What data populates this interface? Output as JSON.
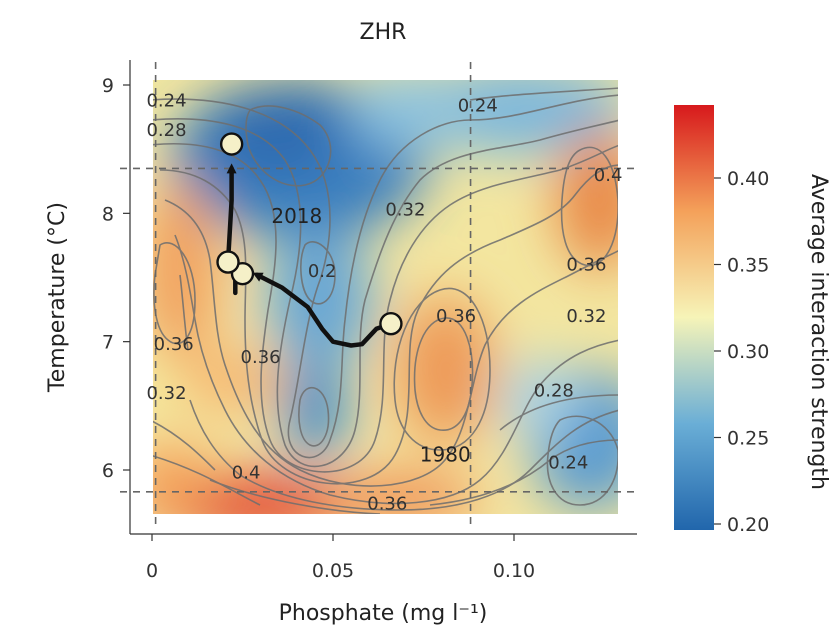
{
  "chart_data": {
    "type": "heatmap",
    "title": "ZHR",
    "xlabel": "Phosphate (mg l⁻¹)",
    "ylabel": "Temperature (°C)",
    "colorbar_label": "Average interaction strength",
    "xlim": [
      0,
      0.128
    ],
    "ylim": [
      5.65,
      9.05
    ],
    "x_ticks": [
      {
        "value": 0,
        "label": "0"
      },
      {
        "value": 0.05,
        "label": "0.05"
      },
      {
        "value": 0.1,
        "label": "0.10"
      }
    ],
    "y_ticks": [
      {
        "value": 6,
        "label": "6"
      },
      {
        "value": 7,
        "label": "7"
      },
      {
        "value": 8,
        "label": "8"
      },
      {
        "value": 9,
        "label": "9"
      }
    ],
    "colorbar_range": [
      0.195,
      0.44
    ],
    "colorbar_ticks": [
      {
        "value": 0.2,
        "label": "0.20"
      },
      {
        "value": 0.25,
        "label": "0.25"
      },
      {
        "value": 0.3,
        "label": "0.30"
      },
      {
        "value": 0.35,
        "label": "0.35"
      },
      {
        "value": 0.4,
        "label": "0.40"
      }
    ],
    "dashed_lines": {
      "x": [
        0.001,
        0.088
      ],
      "y": [
        5.83,
        8.35
      ]
    },
    "contour_labels": [
      {
        "text": "0.24",
        "x": 0.004,
        "y": 8.88
      },
      {
        "text": "0.28",
        "x": 0.004,
        "y": 8.65
      },
      {
        "text": "0.24",
        "x": 0.09,
        "y": 8.84
      },
      {
        "text": "0.32",
        "x": 0.07,
        "y": 8.03
      },
      {
        "text": "0.4",
        "x": 0.126,
        "y": 8.3
      },
      {
        "text": "0.2",
        "x": 0.047,
        "y": 7.55
      },
      {
        "text": "0.36",
        "x": 0.12,
        "y": 7.6
      },
      {
        "text": "0.32",
        "x": 0.12,
        "y": 7.2
      },
      {
        "text": "0.36",
        "x": 0.084,
        "y": 7.2
      },
      {
        "text": "0.36",
        "x": 0.006,
        "y": 6.98
      },
      {
        "text": "0.36",
        "x": 0.03,
        "y": 6.88
      },
      {
        "text": "0.32",
        "x": 0.004,
        "y": 6.6
      },
      {
        "text": "0.28",
        "x": 0.111,
        "y": 6.62
      },
      {
        "text": "0.24",
        "x": 0.115,
        "y": 6.06
      },
      {
        "text": "0.4",
        "x": 0.026,
        "y": 5.98
      },
      {
        "text": "0.36",
        "x": 0.065,
        "y": 5.74
      }
    ],
    "trajectory": {
      "path": [
        {
          "x": 0.066,
          "y": 7.14
        },
        {
          "x": 0.062,
          "y": 7.1
        },
        {
          "x": 0.058,
          "y": 6.98
        },
        {
          "x": 0.055,
          "y": 6.97
        },
        {
          "x": 0.05,
          "y": 7.0
        },
        {
          "x": 0.047,
          "y": 7.1
        },
        {
          "x": 0.043,
          "y": 7.27
        },
        {
          "x": 0.036,
          "y": 7.42
        },
        {
          "x": 0.029,
          "y": 7.52
        }
      ],
      "upper_path": [
        {
          "x": 0.023,
          "y": 7.38
        },
        {
          "x": 0.023,
          "y": 7.62
        },
        {
          "x": 0.021,
          "y": 7.62
        },
        {
          "x": 0.022,
          "y": 8.1
        },
        {
          "x": 0.022,
          "y": 8.35
        }
      ],
      "points": [
        {
          "x": 0.066,
          "y": 7.14
        },
        {
          "x": 0.025,
          "y": 7.53
        },
        {
          "x": 0.021,
          "y": 7.62
        },
        {
          "x": 0.022,
          "y": 8.54
        }
      ],
      "year_labels": [
        {
          "text": "2018",
          "x": 0.04,
          "y": 7.98
        },
        {
          "text": "1980",
          "x": 0.081,
          "y": 6.12
        }
      ]
    }
  }
}
